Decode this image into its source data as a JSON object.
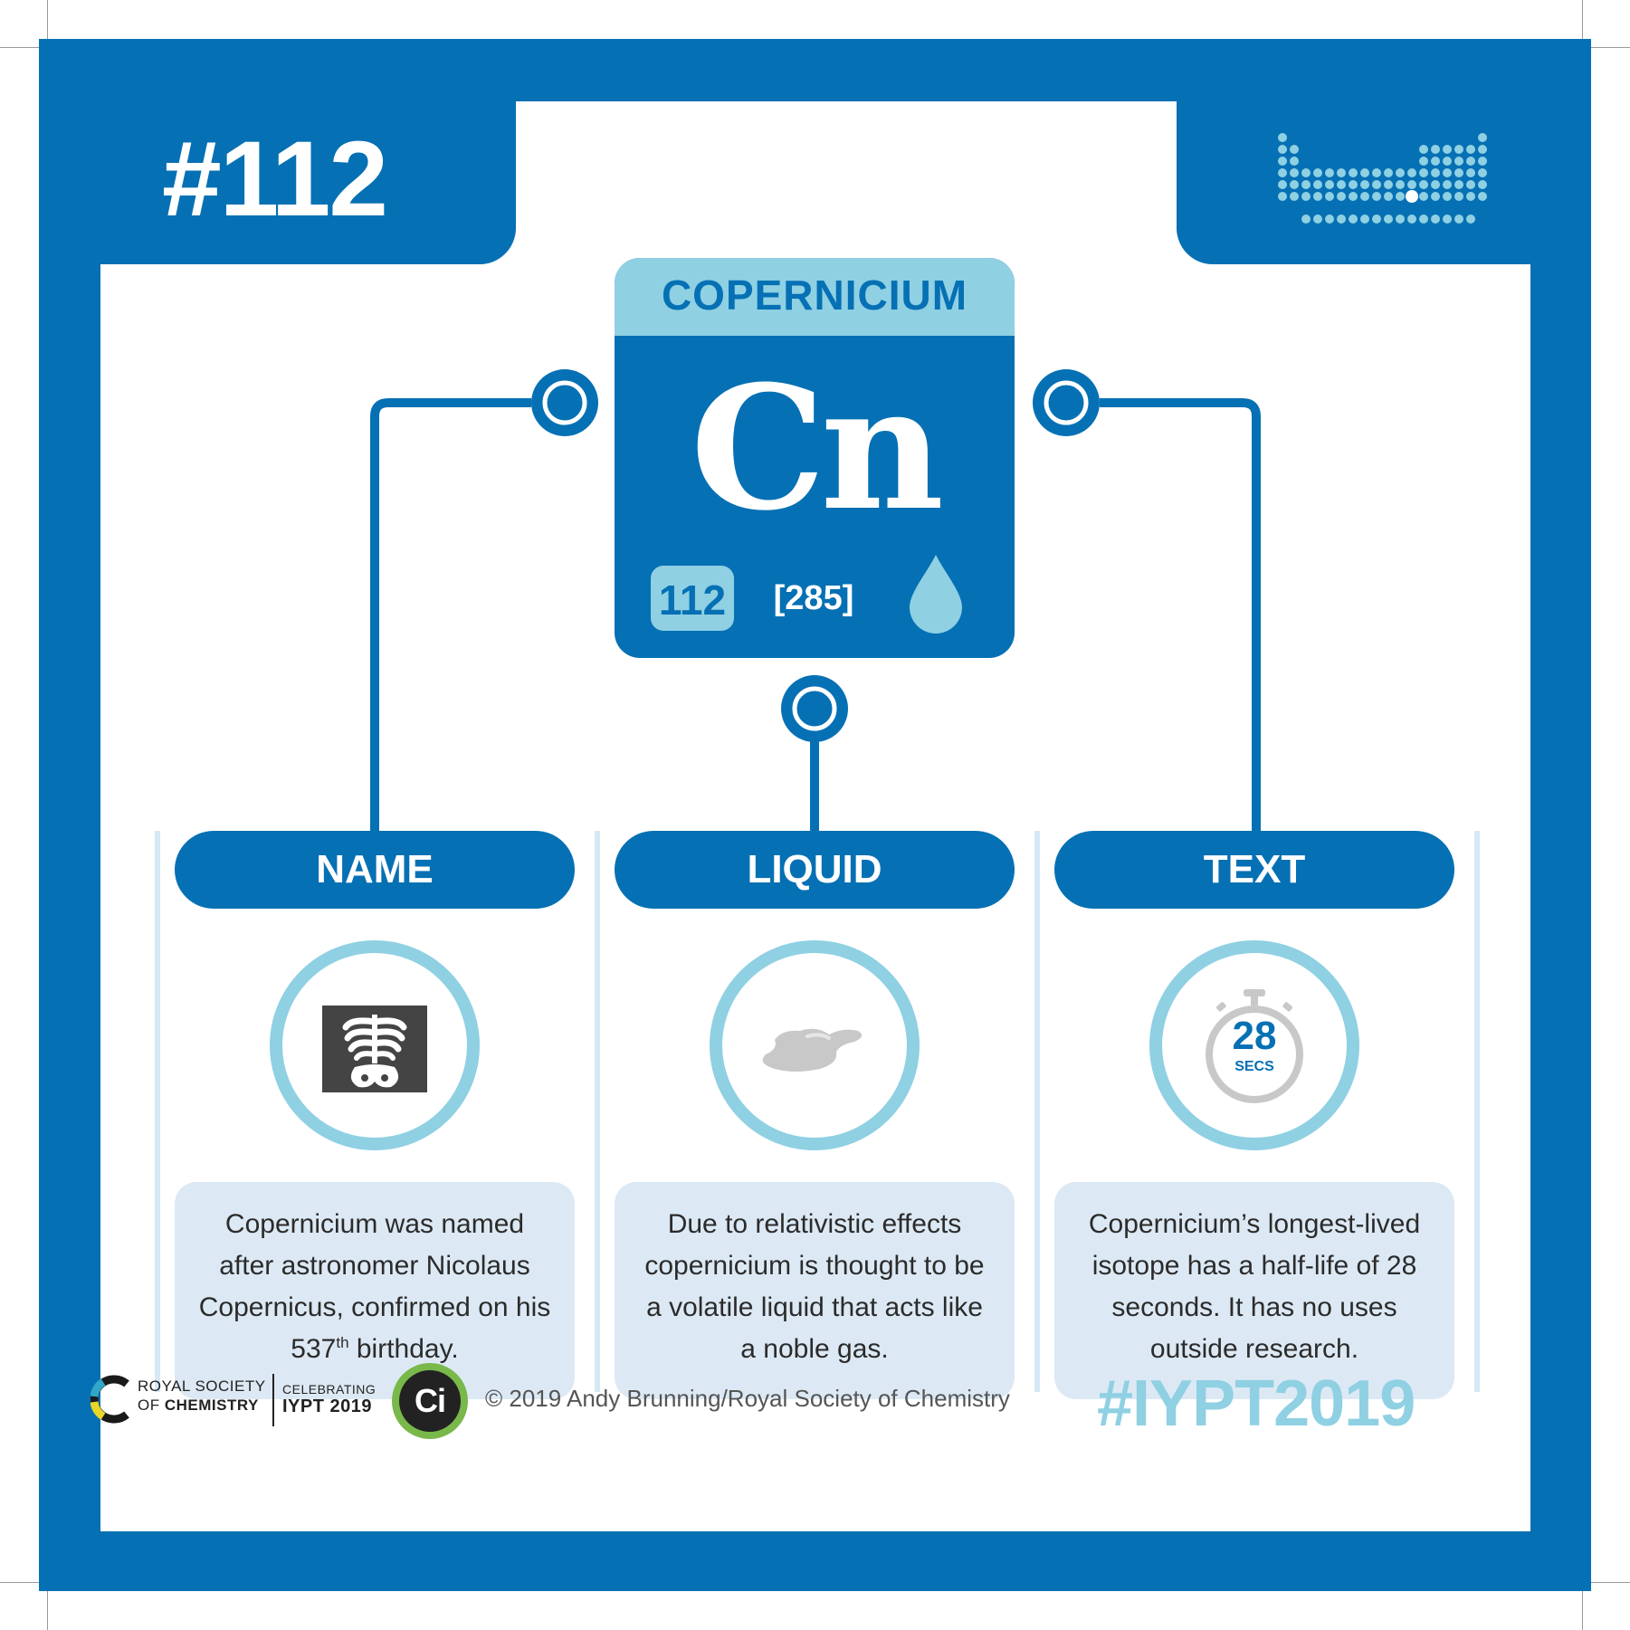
{
  "header": {
    "number_tag": "#112"
  },
  "element": {
    "name": "COPERNICIUM",
    "symbol": "Cn",
    "atomic_number": "112",
    "atomic_mass": "[285]",
    "state_icon": "droplet-icon"
  },
  "columns": [
    {
      "heading": "NAME",
      "icon": "xray-skeleton-icon",
      "text_main": "Copernicium was named after astronomer Nicolaus Copernicus, confirmed on his 537",
      "text_sup": "th",
      "text_end": " birthday."
    },
    {
      "heading": "LIQUID",
      "icon": "liquid-puddle-icon",
      "text_main": "Due to relativistic effects copernicium is thought to be a volatile liquid that acts like a noble gas."
    },
    {
      "heading": "TEXT",
      "icon": "stopwatch-icon",
      "timer_value": "28",
      "timer_unit": "SECS",
      "text_main": "Copernicium’s longest-lived isotope has a half-life of 28 seconds. It has no uses outside research."
    }
  ],
  "footer": {
    "rsc_line1": "ROYAL SOCIETY",
    "rsc_line2_prefix": "OF ",
    "rsc_line2_bold": "CHEMISTRY",
    "celebrating": "CELEBRATING",
    "iypt": "IYPT 2019",
    "ci_logo": "Ci",
    "copyright": "© 2019 Andy Brunning/Royal Society of Chemistry",
    "hashtag": "#IYPT2019"
  },
  "colors": {
    "primary_blue": "#0670b4",
    "light_blue": "#8fd0e3",
    "pale_blue_box": "#dce9f4",
    "ci_green": "#79b84a"
  }
}
